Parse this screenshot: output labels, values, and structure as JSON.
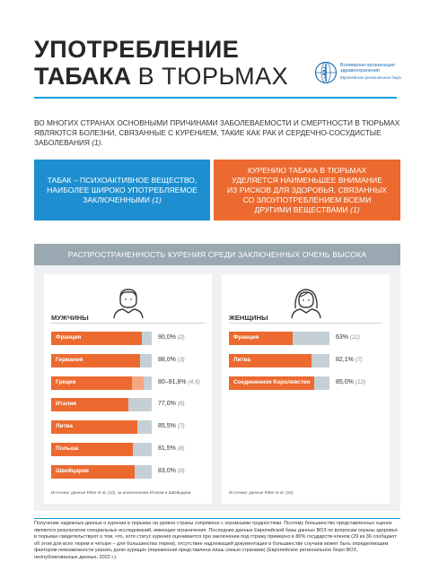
{
  "title": {
    "line1": "УПОТРЕБЛЕНИЕ",
    "line2_bold": "ТАБАКА",
    "line2_thin": "В ТЮРЬМАХ"
  },
  "who": {
    "name": "Всемирная организация здравоохранения",
    "region": "Европейское региональное бюро"
  },
  "intro": "ВО МНОГИХ СТРАНАХ ОСНОВНЫМИ ПРИЧИНАМИ ЗАБОЛЕВАЕМОСТИ И СМЕРТНОСТИ В ТЮРЬМАХ ЯВЛЯЮТСЯ БОЛЕЗНИ, СВЯЗАННЫЕ С КУРЕНИЕМ, ТАКИЕ КАК РАК И СЕРДЕЧНО-СОСУДИСТЫЕ ЗАБОЛЕВАНИЯ",
  "intro_ref": "(1).",
  "box_blue": {
    "text": "ТАБАК – ПСИХОАКТИВНОЕ ВЕЩЕСТВО, НАИБОЛЕЕ ШИРОКО УПОТРЕБЛЯЕМОЕ ЗАКЛЮЧЕННЫМИ",
    "ref": "(1)"
  },
  "box_orange": {
    "text": "КУРЕНИЮ ТАБАКА В ТЮРЬМАХ УДЕЛЯЕТСЯ НАИМЕНЬШЕЕ ВНИМАНИЕ ИЗ РИСКОВ ДЛЯ ЗДОРОВЬЯ, СВЯЗАННЫХ СО ЗЛОУПОТРЕБЛЕНИЕМ ВСЕМИ ДРУГИМИ ВЕЩЕСТВАМИ",
    "ref": "(1)"
  },
  "banner": "РАСПРОСТРАНЕННОСТЬ КУРЕНИЯ СРЕДИ ЗАКЛЮЧЕННЫХ ОЧЕНЬ ВЫСОКА",
  "chart_data": [
    {
      "type": "bar",
      "group": "МУЖЧИНЫ",
      "xlim": [
        0,
        100
      ],
      "rows": [
        {
          "label": "Франция",
          "value": 90.0,
          "value_text": "90,0%",
          "ref": "(2)"
        },
        {
          "label": "Германия",
          "value": 88.0,
          "value_text": "88,0%",
          "ref": "(3)"
        },
        {
          "label": "Греция",
          "value": 80,
          "value_max": 91.8,
          "value_text": "80–91,8%",
          "ref": "(4,5)"
        },
        {
          "label": "Италия",
          "value": 77.0,
          "value_text": "77,0%",
          "ref": "(6)"
        },
        {
          "label": "Литва",
          "value": 85.5,
          "value_text": "85,5%",
          "ref": "(7)"
        },
        {
          "label": "Польша",
          "value": 81.5,
          "value_text": "81,5%",
          "ref": "(8)"
        },
        {
          "label": "Швейцария",
          "value": 83.0,
          "value_text": "83,0%",
          "ref": "(9)"
        }
      ],
      "source": "Источник: данные Ritter et al. (10), за исключением Италии и Швейцарии."
    },
    {
      "type": "bar",
      "group": "ЖЕНЩИНЫ",
      "xlim": [
        0,
        100
      ],
      "rows": [
        {
          "label": "Франция",
          "value": 63,
          "value_text": "63%",
          "ref": "(11)"
        },
        {
          "label": "Литва",
          "value": 82.1,
          "value_text": "82,1%",
          "ref": "(7)"
        },
        {
          "label": "Соединенное Королевство",
          "value": 85.0,
          "value_text": "85,0%",
          "ref": "(12)"
        }
      ],
      "source": "Источник: данные Ritter et al. (10)."
    }
  ],
  "footer": "Получение надежных данных о курении в тюрьмах на уровне страны сопряжено с огромными трудностями. Поэтому большинство представленных оценок являются результатом специальных исследований, имеющих ограничения. Последние данные Европейской базы данных ВОЗ по вопросам охраны здоровья в тюрьмах свидетельствуют о том, что, хотя статус курения оценивается при заключении под стражу примерно в 80% государств-членов (29 из 36 сообщают об этом для всех тюрем и четыре – для большинства тюрем), отсутствие надлежащей документации в большинстве случаев может быть определяющим фактором невозможности указать долю курящих (переменная представлена лишь семью странами) (Европейское региональное бюро ВОЗ, неопубликованные данные, 2022 г.).",
  "colors": {
    "accent_blue": "#1d8fd0",
    "accent_orange": "#ec6a2f",
    "bar_track": "#c5d0d6",
    "banner_gray": "#9aa8b1"
  },
  "icons": [
    "who-emblem-icon",
    "man-avatar-icon",
    "woman-avatar-icon"
  ]
}
